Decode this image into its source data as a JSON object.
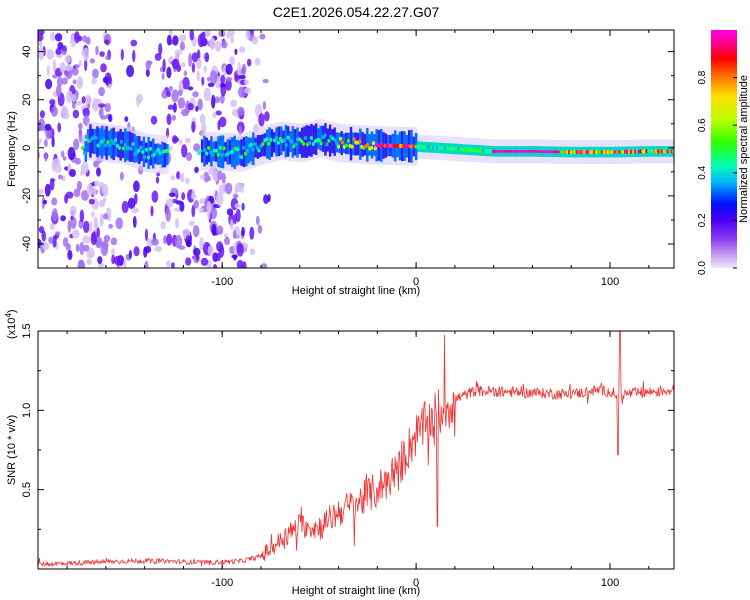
{
  "figure_title": "C2E1.2026.054.22.27.G07",
  "chart_data": [
    {
      "type": "heatmap",
      "name": "spectrogram",
      "xlabel": "Height of straight line (km)",
      "ylabel": "Frequency (Hz)",
      "xlim": [
        -195,
        133
      ],
      "ylim": [
        -50,
        49
      ],
      "xticks": [
        -100,
        0,
        100
      ],
      "xtick_labels": [
        "-100",
        "0",
        "100"
      ],
      "yticks": [
        -40,
        -20,
        0,
        20,
        40
      ],
      "ytick_labels": [
        "-40",
        "-20",
        "0",
        "20",
        "40"
      ],
      "colorbar": {
        "label": "Normalized spectral amplitude",
        "range": [
          0,
          1
        ],
        "ticks": [
          0.0,
          0.2,
          0.4,
          0.6,
          0.8
        ],
        "tick_labels": [
          "0.0",
          "0.2",
          "0.4",
          "0.6",
          "0.8"
        ],
        "colormap": [
          "#f0e6fa",
          "#c9a6ee",
          "#8a3ff0",
          "#4b00f5",
          "#0010ff",
          "#00b4ff",
          "#00ffb0",
          "#30ff00",
          "#b8ff00",
          "#ffe000",
          "#ff7a00",
          "#ff0000",
          "#ff0096",
          "#ff00e6"
        ]
      },
      "ridge": [
        {
          "x": -170,
          "f": 3
        },
        {
          "x": -160,
          "f": 2
        },
        {
          "x": -150,
          "f": 1
        },
        {
          "x": -140,
          "f": -2
        },
        {
          "x": -130,
          "f": -3
        },
        {
          "x": -120,
          "f": -1
        },
        {
          "x": -90,
          "f": -2
        },
        {
          "x": -80,
          "f": 1
        },
        {
          "x": -70,
          "f": 3
        },
        {
          "x": -60,
          "f": 2
        },
        {
          "x": -50,
          "f": 4
        },
        {
          "x": -40,
          "f": 2
        },
        {
          "x": -30,
          "f": 1.5
        },
        {
          "x": -20,
          "f": 1
        },
        {
          "x": -10,
          "f": 0.8
        },
        {
          "x": 0,
          "f": 0.5
        },
        {
          "x": 10,
          "f": 0
        },
        {
          "x": 20,
          "f": -0.5
        },
        {
          "x": 30,
          "f": -1
        },
        {
          "x": 40,
          "f": -1.5
        },
        {
          "x": 60,
          "f": -1.5
        },
        {
          "x": 80,
          "f": -1.8
        },
        {
          "x": 100,
          "f": -1.8
        },
        {
          "x": 120,
          "f": -1.5
        },
        {
          "x": 133,
          "f": -1.5
        }
      ]
    },
    {
      "type": "line",
      "name": "snr",
      "xlabel": "Height of straight line (km)",
      "ylabel": "SNR (10 * v/v)",
      "y_multiplier": "(x10",
      "y_multiplier_exp": "4",
      "xlim": [
        -195,
        133
      ],
      "ylim": [
        0,
        1.5
      ],
      "xticks": [
        -100,
        0,
        100
      ],
      "xtick_labels": [
        "-100",
        "0",
        "100"
      ],
      "yticks": [
        0.5,
        1.0,
        1.5
      ],
      "ytick_labels": [
        "0.5",
        "1.0",
        "1.5"
      ],
      "color": "#ee3333",
      "series": [
        {
          "name": "SNR",
          "x": [
            -195,
            -170,
            -150,
            -130,
            -110,
            -90,
            -80,
            -70,
            -60,
            -50,
            -40,
            -30,
            -20,
            -10,
            0,
            10,
            20,
            30,
            40,
            60,
            80,
            95,
            105,
            115,
            133
          ],
          "y": [
            0.03,
            0.04,
            0.05,
            0.05,
            0.04,
            0.05,
            0.08,
            0.18,
            0.28,
            0.26,
            0.36,
            0.42,
            0.5,
            0.62,
            0.85,
            0.97,
            1.07,
            1.12,
            1.12,
            1.11,
            1.1,
            1.13,
            1.1,
            1.11,
            1.13
          ]
        }
      ]
    }
  ]
}
